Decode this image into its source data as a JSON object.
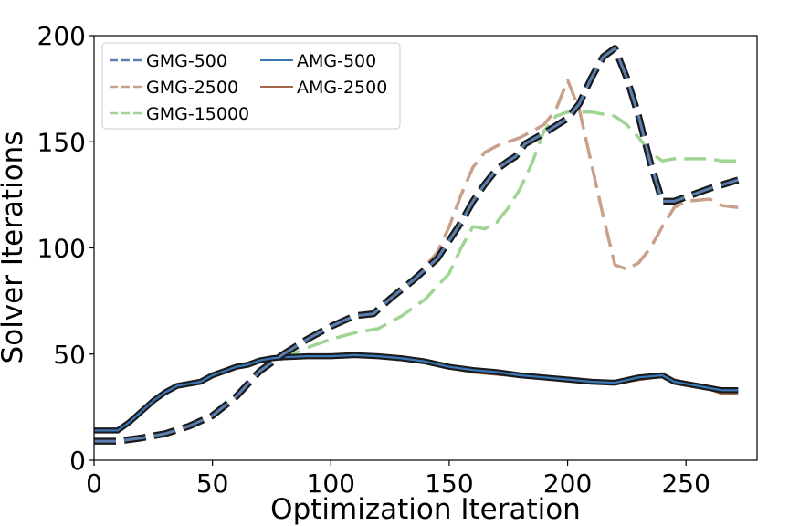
{
  "chart_data": {
    "type": "line",
    "title": "",
    "xlabel": "Optimization Iteration",
    "ylabel": "Solver Iterations",
    "xlim": [
      0,
      280
    ],
    "ylim": [
      0,
      200
    ],
    "xticks": [
      0,
      50,
      100,
      150,
      200,
      250
    ],
    "yticks": [
      0,
      50,
      100,
      150,
      200
    ],
    "grid": false,
    "legend_position": "top-left",
    "legend_order": [
      "GMG-500",
      "AMG-500",
      "GMG-2500",
      "AMG-2500",
      "GMG-15000"
    ],
    "series": [
      {
        "name": "GMG-500",
        "style": "dashed",
        "color": "#5b7fb0",
        "points": [
          [
            0,
            9
          ],
          [
            10,
            9
          ],
          [
            20,
            10.5
          ],
          [
            30,
            12.5
          ],
          [
            40,
            16
          ],
          [
            50,
            21
          ],
          [
            60,
            30
          ],
          [
            70,
            42
          ],
          [
            80,
            50
          ],
          [
            90,
            57
          ],
          [
            100,
            63
          ],
          [
            110,
            68
          ],
          [
            118,
            69
          ],
          [
            125,
            76
          ],
          [
            135,
            85
          ],
          [
            145,
            95
          ],
          [
            155,
            112
          ],
          [
            160,
            122
          ],
          [
            165,
            130
          ],
          [
            170,
            137
          ],
          [
            175,
            141
          ],
          [
            178,
            143
          ],
          [
            182,
            149
          ],
          [
            190,
            154
          ],
          [
            200,
            161
          ],
          [
            205,
            168
          ],
          [
            210,
            180
          ],
          [
            215,
            190
          ],
          [
            220,
            194
          ],
          [
            225,
            180
          ],
          [
            230,
            162
          ],
          [
            235,
            140
          ],
          [
            240,
            122
          ],
          [
            245,
            122
          ],
          [
            250,
            124
          ],
          [
            260,
            128
          ],
          [
            272,
            132
          ]
        ]
      },
      {
        "name": "AMG-500",
        "style": "solid",
        "color": "#3a78b8",
        "points": [
          [
            0,
            14
          ],
          [
            10,
            14
          ],
          [
            15,
            18
          ],
          [
            20,
            23
          ],
          [
            25,
            28
          ],
          [
            30,
            32
          ],
          [
            35,
            35
          ],
          [
            40,
            36
          ],
          [
            45,
            37
          ],
          [
            50,
            40
          ],
          [
            55,
            42
          ],
          [
            60,
            44
          ],
          [
            65,
            45
          ],
          [
            70,
            47
          ],
          [
            75,
            48
          ],
          [
            80,
            48.5
          ],
          [
            90,
            49
          ],
          [
            100,
            49
          ],
          [
            110,
            49.5
          ],
          [
            120,
            49
          ],
          [
            130,
            48
          ],
          [
            140,
            46.5
          ],
          [
            150,
            44
          ],
          [
            160,
            42.5
          ],
          [
            170,
            41.5
          ],
          [
            180,
            40
          ],
          [
            190,
            39
          ],
          [
            200,
            38
          ],
          [
            210,
            37
          ],
          [
            220,
            36.5
          ],
          [
            230,
            39
          ],
          [
            240,
            40
          ],
          [
            245,
            37
          ],
          [
            250,
            36
          ],
          [
            260,
            34
          ],
          [
            265,
            33
          ],
          [
            272,
            33
          ]
        ]
      },
      {
        "name": "GMG-2500",
        "style": "dashed",
        "color": "#c9a089",
        "points": [
          [
            0,
            9
          ],
          [
            10,
            9
          ],
          [
            20,
            10.5
          ],
          [
            30,
            12.5
          ],
          [
            40,
            16
          ],
          [
            50,
            21
          ],
          [
            60,
            30
          ],
          [
            70,
            42
          ],
          [
            80,
            50
          ],
          [
            90,
            57
          ],
          [
            100,
            63
          ],
          [
            110,
            68
          ],
          [
            118,
            69
          ],
          [
            125,
            76
          ],
          [
            135,
            85
          ],
          [
            145,
            98
          ],
          [
            150,
            110
          ],
          [
            155,
            125
          ],
          [
            160,
            138
          ],
          [
            165,
            145
          ],
          [
            170,
            148
          ],
          [
            175,
            150
          ],
          [
            180,
            152
          ],
          [
            190,
            158
          ],
          [
            195,
            165
          ],
          [
            200,
            179
          ],
          [
            205,
            165
          ],
          [
            210,
            140
          ],
          [
            215,
            115
          ],
          [
            220,
            92
          ],
          [
            225,
            90
          ],
          [
            230,
            93
          ],
          [
            235,
            100
          ],
          [
            240,
            110
          ],
          [
            245,
            119
          ],
          [
            250,
            122
          ],
          [
            260,
            123
          ],
          [
            265,
            120
          ],
          [
            272,
            119
          ]
        ]
      },
      {
        "name": "AMG-2500",
        "style": "solid",
        "color": "#a6674a",
        "points": [
          [
            0,
            14
          ],
          [
            10,
            14
          ],
          [
            15,
            18
          ],
          [
            20,
            23
          ],
          [
            25,
            28
          ],
          [
            30,
            32
          ],
          [
            35,
            35
          ],
          [
            40,
            36
          ],
          [
            45,
            37
          ],
          [
            50,
            40
          ],
          [
            55,
            42
          ],
          [
            60,
            44
          ],
          [
            65,
            45
          ],
          [
            70,
            47
          ],
          [
            75,
            48
          ],
          [
            80,
            48.5
          ],
          [
            90,
            49
          ],
          [
            100,
            49
          ],
          [
            110,
            49.5
          ],
          [
            120,
            49
          ],
          [
            130,
            48
          ],
          [
            140,
            46.5
          ],
          [
            150,
            44
          ],
          [
            160,
            42
          ],
          [
            170,
            41
          ],
          [
            180,
            40
          ],
          [
            190,
            39
          ],
          [
            200,
            38
          ],
          [
            210,
            37
          ],
          [
            220,
            36.5
          ],
          [
            230,
            38.5
          ],
          [
            240,
            40
          ],
          [
            245,
            37
          ],
          [
            250,
            36
          ],
          [
            260,
            34
          ],
          [
            265,
            32
          ],
          [
            272,
            32
          ]
        ]
      },
      {
        "name": "GMG-15000",
        "style": "dashed",
        "color": "#9fd494",
        "points": [
          [
            0,
            9
          ],
          [
            10,
            9
          ],
          [
            20,
            10.5
          ],
          [
            30,
            12.5
          ],
          [
            40,
            16
          ],
          [
            50,
            21
          ],
          [
            60,
            30
          ],
          [
            70,
            42
          ],
          [
            80,
            48
          ],
          [
            90,
            53
          ],
          [
            100,
            57
          ],
          [
            110,
            60
          ],
          [
            120,
            62
          ],
          [
            130,
            68
          ],
          [
            140,
            76
          ],
          [
            150,
            88
          ],
          [
            155,
            100
          ],
          [
            160,
            110
          ],
          [
            165,
            109
          ],
          [
            170,
            112
          ],
          [
            175,
            119
          ],
          [
            180,
            128
          ],
          [
            185,
            140
          ],
          [
            190,
            155
          ],
          [
            195,
            162
          ],
          [
            200,
            164
          ],
          [
            210,
            164
          ],
          [
            215,
            163
          ],
          [
            220,
            162
          ],
          [
            225,
            158
          ],
          [
            230,
            152
          ],
          [
            235,
            145
          ],
          [
            240,
            141
          ],
          [
            245,
            142
          ],
          [
            255,
            142
          ],
          [
            260,
            142
          ],
          [
            265,
            141
          ],
          [
            272,
            141
          ]
        ]
      }
    ]
  }
}
